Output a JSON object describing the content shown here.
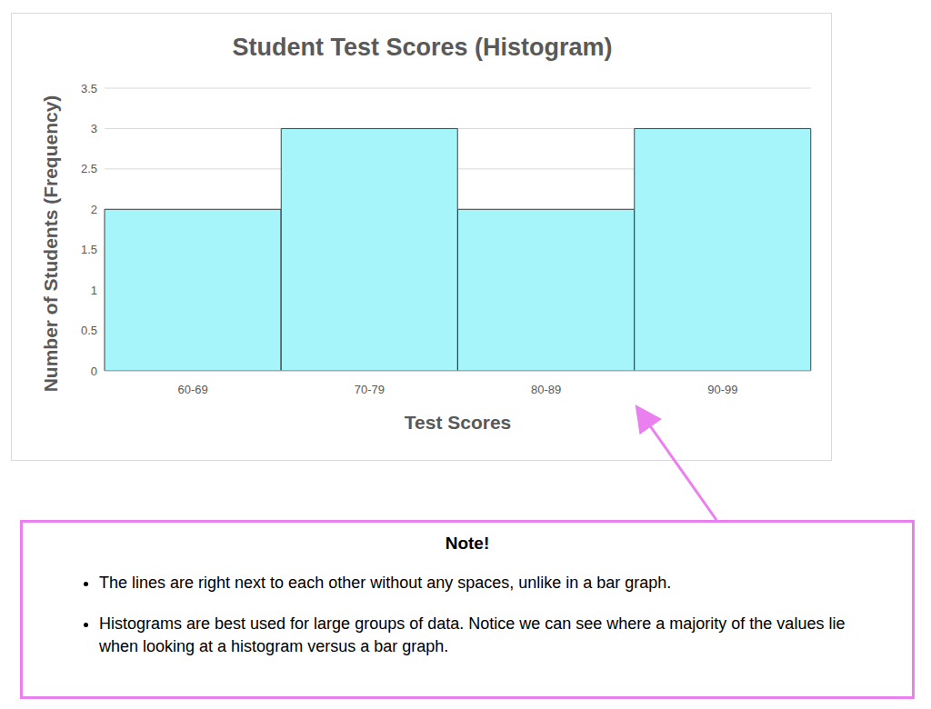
{
  "chart_data": {
    "type": "histogram",
    "title": "Student Test Scores (Histogram)",
    "x_label": "Test Scores",
    "y_label": "Number of Students (Frequency)",
    "categories": [
      "60-69",
      "70-79",
      "80-89",
      "90-99"
    ],
    "values": [
      2,
      3,
      2,
      3
    ],
    "color": "#a6f5fb",
    "ylim": [
      0,
      3.5
    ],
    "yticks": [
      0,
      0.5,
      1,
      1.5,
      2,
      2.5,
      3,
      3.5
    ],
    "grid": true,
    "annotation": {
      "title": "Note!",
      "items": [
        "The lines are right next to each other without any spaces, unlike in a bar graph.",
        "Histograms are best used for large groups of data. Notice we can see where a majority of the values lie when looking at a histogram versus a bar graph."
      ]
    }
  }
}
